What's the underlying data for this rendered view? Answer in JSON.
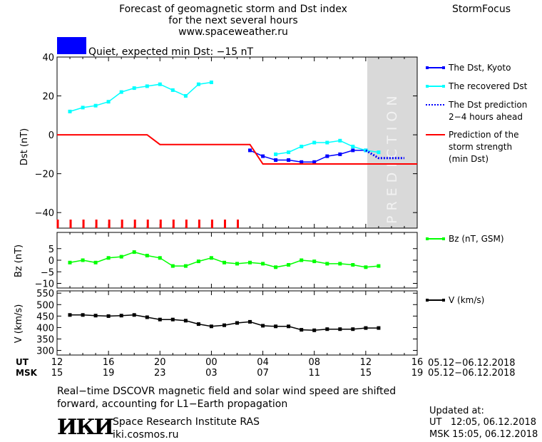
{
  "header": {
    "title_line1": "Forecast of geomagnetic storm and Dst index",
    "title_line2": "for the next several hours",
    "url": "www.spaceweather.ru",
    "brand": "StormFocus",
    "status_text": "Quiet, expected min Dst: −15 nT",
    "status_color": "#0000ff"
  },
  "prediction_label": "PREDICTION",
  "legend": {
    "dst_kyoto": "The Dst, Kyoto",
    "recovered": "The recovered Dst",
    "dst_pred_line1": "The Dst prediction",
    "dst_pred_line2": "2−4 hours ahead",
    "strength_line1": "Prediction of the",
    "strength_line2": "storm strength",
    "strength_line3": "(min Dst)",
    "bz": "Bz (nT, GSM)",
    "v": "V (km/s)"
  },
  "x_axis": {
    "ut_label": "UT",
    "msk_label": "MSK",
    "ut_ticks": [
      "12",
      "16",
      "20",
      "00",
      "04",
      "08",
      "12",
      "16"
    ],
    "msk_ticks": [
      "15",
      "19",
      "23",
      "03",
      "07",
      "11",
      "15",
      "19"
    ],
    "date_range_ut": "05.12−06.12.2018",
    "date_range_msk": "05.12−06.12.2018"
  },
  "footer": {
    "note_line1": "Real−time DSCOVR magnetic field and solar wind speed are shifted",
    "note_line2": "forward, accounting for L1−Earth propagation",
    "logo_text": "ИКИ",
    "institute": "Space Research Institute RAS",
    "site": "iki.cosmos.ru",
    "updated_label": "Updated at:",
    "updated_ut": "UT   12:05, 06.12.2018",
    "updated_msk": "MSK 15:05, 06.12.2018"
  },
  "chart_data": [
    {
      "type": "line",
      "name": "dst-panel",
      "ylabel": "Dst (nT)",
      "ylim": [
        -48,
        40
      ],
      "yticks": [
        40,
        20,
        0,
        -20,
        -40
      ],
      "xlim_hours": [
        0,
        28
      ],
      "prediction_region_hours": [
        24,
        28
      ],
      "series": [
        {
          "name": "The Dst, Kyoto",
          "color": "#0000ff",
          "x": [
            15,
            16,
            17,
            18,
            19,
            20,
            21,
            22,
            23,
            24
          ],
          "y": [
            -8,
            -11,
            -13,
            -13,
            -14,
            -14,
            -11,
            -10,
            -8,
            -8
          ]
        },
        {
          "name": "The recovered Dst",
          "color": "#00ffff",
          "x": [
            1,
            2,
            3,
            4,
            5,
            6,
            7,
            8,
            9,
            10,
            11,
            12,
            13,
            17,
            18,
            19,
            20,
            21,
            22,
            23,
            24,
            25
          ],
          "y": [
            12,
            14,
            15,
            17,
            22,
            24,
            25,
            26,
            23,
            20,
            26,
            27,
            null,
            -10,
            -9,
            -6,
            -4,
            -4,
            -3,
            -6,
            -8,
            -9
          ]
        },
        {
          "name": "The Dst prediction 2−4 hours ahead",
          "color": "#0000ff",
          "style": "dotted",
          "x": [
            24,
            25,
            26,
            27
          ],
          "y": [
            -8,
            -12,
            -12,
            -12
          ]
        },
        {
          "name": "Prediction of the storm strength (min Dst)",
          "color": "#ff0000",
          "x": [
            0,
            7,
            8,
            15,
            16,
            28
          ],
          "y": [
            0,
            0,
            -5,
            -5,
            -15,
            -15
          ]
        }
      ],
      "event_marks_hours": [
        0,
        1,
        2,
        3,
        4,
        5,
        6,
        7,
        8,
        9,
        10,
        11,
        12,
        13,
        14
      ]
    },
    {
      "type": "line",
      "name": "bz-panel",
      "ylabel": "Bz (nT)",
      "ylim": [
        -12,
        12
      ],
      "yticks": [
        5,
        0,
        -5,
        -10
      ],
      "series": [
        {
          "name": "Bz (nT, GSM)",
          "color": "#00ff00",
          "x": [
            1,
            2,
            3,
            4,
            5,
            6,
            7,
            8,
            9,
            10,
            11,
            12,
            13,
            14,
            15,
            16,
            17,
            18,
            19,
            20,
            21,
            22,
            23,
            24,
            25
          ],
          "y": [
            -1,
            0,
            -1,
            1,
            1.5,
            3.5,
            2,
            1,
            -2.5,
            -2.5,
            -0.5,
            1,
            -1,
            -1.5,
            -1,
            -1.5,
            -3,
            -2,
            0,
            -0.5,
            -1.5,
            -1.5,
            -2,
            -3,
            -2.5
          ]
        }
      ]
    },
    {
      "type": "line",
      "name": "v-panel",
      "ylabel": "V (km/s)",
      "ylim": [
        280,
        560
      ],
      "yticks": [
        550,
        500,
        450,
        400,
        350,
        300
      ],
      "series": [
        {
          "name": "V (km/s)",
          "color": "#000000",
          "x": [
            1,
            2,
            3,
            4,
            5,
            6,
            7,
            8,
            9,
            10,
            11,
            12,
            13,
            14,
            15,
            16,
            17,
            18,
            19,
            20,
            21,
            22,
            23,
            24,
            25
          ],
          "y": [
            455,
            455,
            452,
            450,
            452,
            455,
            445,
            435,
            435,
            430,
            415,
            405,
            410,
            420,
            425,
            408,
            405,
            405,
            390,
            388,
            393,
            393,
            393,
            398,
            398
          ]
        }
      ]
    }
  ]
}
